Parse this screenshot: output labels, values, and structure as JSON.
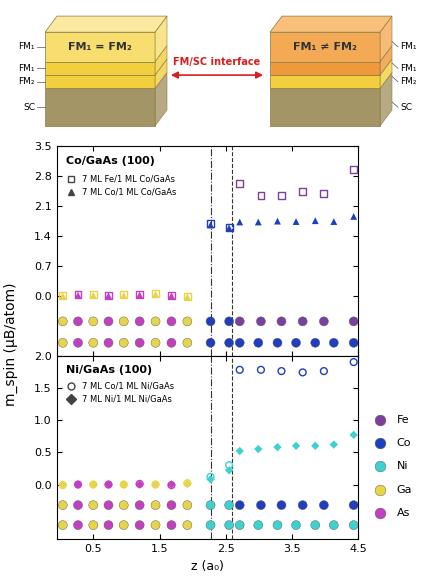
{
  "diagram": {
    "left_box": {
      "label": "FM₁ = FM₂",
      "layer_labels": [
        "FM₁",
        "FM₁",
        "FM₂",
        "SC"
      ]
    },
    "right_box": {
      "label": "FM₁ ≠ FM₂",
      "layer_labels": [
        "FM₁",
        "FM₁",
        "FM₂",
        "SC"
      ]
    },
    "arrow_label": "FM/SC interface"
  },
  "element_legend": [
    {
      "name": "Fe",
      "color": "#7b3f9e"
    },
    {
      "name": "Co",
      "color": "#1f3fbf"
    },
    {
      "name": "Ni",
      "color": "#3fd0d0"
    },
    {
      "name": "Ga",
      "color": "#e6d54a"
    },
    {
      "name": "As",
      "color": "#c23fbf"
    }
  ],
  "chart_data": [
    {
      "type": "scatter",
      "annotation": "Co/GaAs (100)",
      "y_label": "m_spin (μB/atom)",
      "xlim": [
        -0.05,
        4.5
      ],
      "xticks": [
        0.5,
        1.5,
        2.5,
        3.5,
        4.5
      ],
      "ylim": [
        -1.4,
        3.5
      ],
      "yticks": [
        0.0,
        0.7,
        1.4,
        2.1,
        2.8,
        3.5
      ],
      "tick_labels": "y",
      "legend": "upper left",
      "vlines": [
        2.27,
        2.6
      ],
      "series": [
        {
          "name": "7 ML Fe/1 ML Co/GaAs",
          "marker": "open_square",
          "x": [
            0.04,
            0.27,
            0.5,
            0.73,
            0.96,
            1.2,
            1.44,
            1.68,
            1.92,
            2.27,
            2.55,
            2.71,
            3.03,
            3.34,
            3.66,
            3.98,
            4.43
          ],
          "values": [
            0.0,
            0.02,
            0.02,
            0.0,
            0.02,
            0.03,
            0.05,
            0.01,
            -0.02,
            1.68,
            1.6,
            2.62,
            2.33,
            2.33,
            2.43,
            2.39,
            2.95
          ],
          "colors": [
            "#e6d54a",
            "#c23fbf",
            "#e6d54a",
            "#c23fbf",
            "#e6d54a",
            "#c23fbf",
            "#e6d54a",
            "#c23fbf",
            "#e6d54a",
            "#1f3fbf",
            "#1f3fbf",
            "#7b3f9e",
            "#7b3f9e",
            "#7b3f9e",
            "#7b3f9e",
            "#7b3f9e",
            "#7b3f9e"
          ]
        },
        {
          "name": "7 ML Co/1 ML Co/GaAs",
          "marker": "triangle",
          "x": [
            0.04,
            0.27,
            0.5,
            0.73,
            0.96,
            1.2,
            1.44,
            1.68,
            1.92,
            2.27,
            2.55,
            2.71,
            2.99,
            3.28,
            3.56,
            3.85,
            4.13,
            4.43
          ],
          "values": [
            0.0,
            0.01,
            0.01,
            0.0,
            0.01,
            0.02,
            0.03,
            0.0,
            -0.03,
            1.65,
            1.58,
            1.72,
            1.72,
            1.74,
            1.73,
            1.75,
            1.73,
            1.85
          ],
          "colors": [
            "#e6d54a",
            "#c23fbf",
            "#e6d54a",
            "#c23fbf",
            "#e6d54a",
            "#c23fbf",
            "#e6d54a",
            "#c23fbf",
            "#e6d54a",
            "#1f3fbf",
            "#1f3fbf",
            "#1f3fbf",
            "#1f3fbf",
            "#1f3fbf",
            "#1f3fbf",
            "#1f3fbf",
            "#1f3fbf",
            "#1f3fbf"
          ]
        }
      ],
      "atom_rows": [
        {
          "y": -0.6,
          "x": [
            0.04,
            0.27,
            0.5,
            0.73,
            0.96,
            1.2,
            1.44,
            1.68,
            1.92,
            2.27,
            2.55,
            2.71,
            3.03,
            3.34,
            3.66,
            3.98,
            4.43
          ],
          "colors": [
            "#e6d54a",
            "#c23fbf",
            "#e6d54a",
            "#c23fbf",
            "#e6d54a",
            "#c23fbf",
            "#e6d54a",
            "#c23fbf",
            "#e6d54a",
            "#1f3fbf",
            "#1f3fbf",
            "#7b3f9e",
            "#7b3f9e",
            "#7b3f9e",
            "#7b3f9e",
            "#7b3f9e",
            "#7b3f9e"
          ]
        },
        {
          "y": -1.1,
          "x": [
            0.04,
            0.27,
            0.5,
            0.73,
            0.96,
            1.2,
            1.44,
            1.68,
            1.92,
            2.27,
            2.55,
            2.71,
            2.99,
            3.28,
            3.56,
            3.85,
            4.13,
            4.43
          ],
          "colors": [
            "#e6d54a",
            "#c23fbf",
            "#e6d54a",
            "#c23fbf",
            "#e6d54a",
            "#c23fbf",
            "#e6d54a",
            "#c23fbf",
            "#e6d54a",
            "#1f3fbf",
            "#1f3fbf",
            "#1f3fbf",
            "#1f3fbf",
            "#1f3fbf",
            "#1f3fbf",
            "#1f3fbf",
            "#1f3fbf",
            "#1f3fbf"
          ]
        }
      ]
    },
    {
      "type": "scatter",
      "annotation": "Ni/GaAs (100)",
      "x_label": "z (a₀)",
      "xlim": [
        -0.05,
        4.5
      ],
      "xticks": [
        0.5,
        1.5,
        2.5,
        3.5,
        4.5
      ],
      "ylim": [
        -0.85,
        2.0
      ],
      "yticks": [
        0.0,
        0.5,
        1.0,
        1.5,
        2.0
      ],
      "legend": "upper left",
      "vlines": [
        2.27,
        2.6
      ],
      "series": [
        {
          "name": "7 ML Co/1 ML Ni/GaAs",
          "marker": "open_circle",
          "x": [
            0.04,
            0.27,
            0.5,
            0.73,
            0.96,
            1.2,
            1.44,
            1.68,
            1.92,
            2.27,
            2.55,
            2.71,
            3.03,
            3.34,
            3.66,
            3.98,
            4.43
          ],
          "values": [
            -0.01,
            0.0,
            0.0,
            0.0,
            0.0,
            0.01,
            0.0,
            -0.01,
            0.02,
            0.12,
            0.3,
            1.78,
            1.78,
            1.76,
            1.74,
            1.76,
            1.9
          ],
          "colors": [
            "#e6d54a",
            "#c23fbf",
            "#e6d54a",
            "#c23fbf",
            "#e6d54a",
            "#c23fbf",
            "#e6d54a",
            "#c23fbf",
            "#e6d54a",
            "#3fd0d0",
            "#3fd0d0",
            "#1f3fbf",
            "#1f3fbf",
            "#1f3fbf",
            "#1f3fbf",
            "#1f3fbf",
            "#1f3fbf"
          ]
        },
        {
          "name": "7 ML Ni/1 ML Ni/GaAs",
          "marker": "diamond",
          "x": [
            0.04,
            0.27,
            0.5,
            0.73,
            0.96,
            1.2,
            1.44,
            1.68,
            1.92,
            2.27,
            2.55,
            2.71,
            2.99,
            3.28,
            3.56,
            3.85,
            4.13,
            4.43
          ],
          "values": [
            0.0,
            0.0,
            0.0,
            0.0,
            0.0,
            0.0,
            0.0,
            0.0,
            0.01,
            0.08,
            0.22,
            0.52,
            0.55,
            0.58,
            0.6,
            0.6,
            0.62,
            0.77
          ],
          "colors": [
            "#e6d54a",
            "#c23fbf",
            "#e6d54a",
            "#c23fbf",
            "#e6d54a",
            "#c23fbf",
            "#e6d54a",
            "#c23fbf",
            "#e6d54a",
            "#3fd0d0",
            "#3fd0d0",
            "#3fd0d0",
            "#3fd0d0",
            "#3fd0d0",
            "#3fd0d0",
            "#3fd0d0",
            "#3fd0d0",
            "#3fd0d0"
          ]
        }
      ],
      "atom_rows": [
        {
          "y": -0.32,
          "x": [
            0.04,
            0.27,
            0.5,
            0.73,
            0.96,
            1.2,
            1.44,
            1.68,
            1.92,
            2.27,
            2.55,
            2.71,
            3.03,
            3.34,
            3.66,
            3.98,
            4.43
          ],
          "colors": [
            "#e6d54a",
            "#c23fbf",
            "#e6d54a",
            "#c23fbf",
            "#e6d54a",
            "#c23fbf",
            "#e6d54a",
            "#c23fbf",
            "#e6d54a",
            "#3fd0d0",
            "#3fd0d0",
            "#1f3fbf",
            "#1f3fbf",
            "#1f3fbf",
            "#1f3fbf",
            "#1f3fbf",
            "#1f3fbf"
          ]
        },
        {
          "y": -0.63,
          "x": [
            0.04,
            0.27,
            0.5,
            0.73,
            0.96,
            1.2,
            1.44,
            1.68,
            1.92,
            2.27,
            2.55,
            2.71,
            2.99,
            3.28,
            3.56,
            3.85,
            4.13,
            4.43
          ],
          "colors": [
            "#e6d54a",
            "#c23fbf",
            "#e6d54a",
            "#c23fbf",
            "#e6d54a",
            "#c23fbf",
            "#e6d54a",
            "#c23fbf",
            "#e6d54a",
            "#3fd0d0",
            "#3fd0d0",
            "#3fd0d0",
            "#3fd0d0",
            "#3fd0d0",
            "#3fd0d0",
            "#3fd0d0",
            "#3fd0d0",
            "#3fd0d0"
          ]
        }
      ]
    }
  ]
}
